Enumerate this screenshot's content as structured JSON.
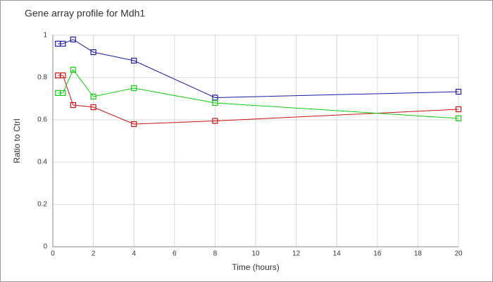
{
  "chart_data": {
    "type": "line",
    "title": "Gene array profile for Mdh1",
    "x_label": "Time (hours)",
    "y_label": "Ratio to Ctrl",
    "x": [
      0.25,
      0.5,
      1,
      2,
      4,
      8,
      20
    ],
    "series": [
      {
        "color": "#1c1ca8",
        "values": [
          0.96,
          0.96,
          0.98,
          0.92,
          0.88,
          0.705,
          0.733
        ]
      },
      {
        "color": "#cc1111",
        "values": [
          0.81,
          0.81,
          0.67,
          0.66,
          0.58,
          0.595,
          0.65
        ]
      },
      {
        "color": "#11cc11",
        "values": [
          0.727,
          0.727,
          0.837,
          0.71,
          0.75,
          0.68,
          0.607
        ]
      }
    ],
    "xlim": [
      0,
      20
    ],
    "xticks": [
      0,
      2,
      4,
      6,
      8,
      10,
      12,
      14,
      16,
      18,
      20
    ],
    "ylim": [
      0,
      1
    ],
    "yticks": [
      0,
      0.2,
      0.4,
      0.6,
      0.8,
      1
    ],
    "grid": true
  }
}
